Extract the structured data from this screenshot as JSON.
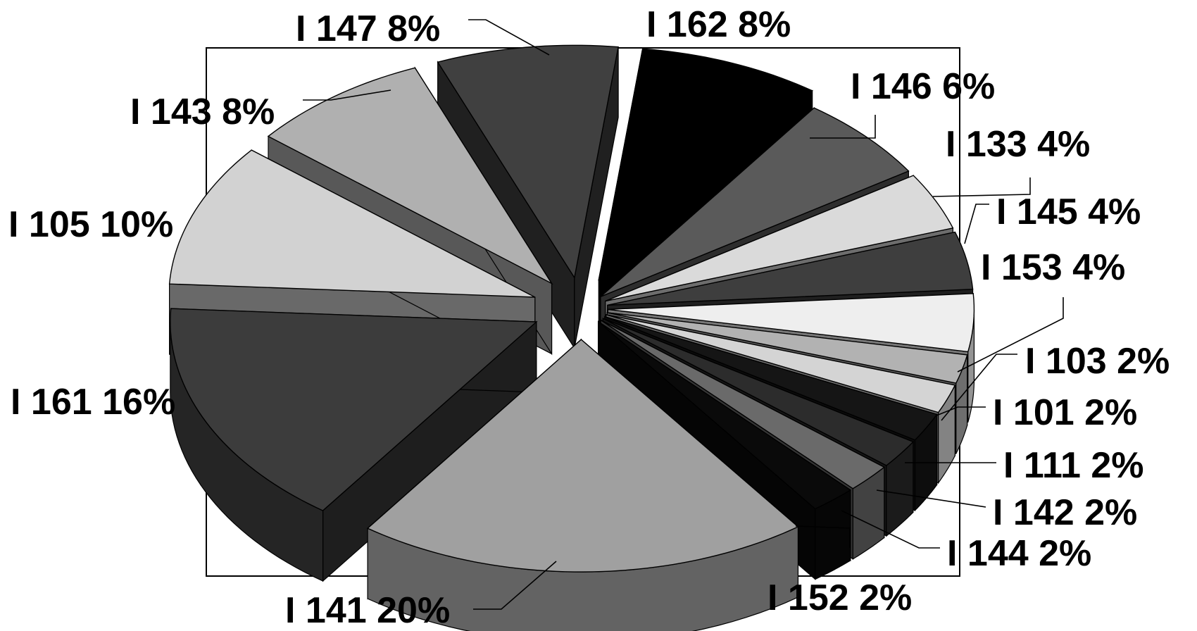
{
  "chart_data": {
    "type": "pie",
    "style": "3d-exploded",
    "slices": [
      {
        "name": "I 162",
        "percent": 8,
        "label": "I 162 8%",
        "color": "#000000"
      },
      {
        "name": "I 146",
        "percent": 6,
        "label": "I 146 6%",
        "color": "#5a5a5a"
      },
      {
        "name": "I 133",
        "percent": 4,
        "label": "I 133 4%",
        "color": "#dadada"
      },
      {
        "name": "I 145",
        "percent": 4,
        "label": "I 145 4%",
        "color": "#3e3e3e"
      },
      {
        "name": "I 153",
        "percent": 4,
        "label": "I 153 4%",
        "color": "#eeeeee"
      },
      {
        "name": "I 103",
        "percent": 2,
        "label": "I 103 2%",
        "color": "#b2b2b2"
      },
      {
        "name": "I 101",
        "percent": 2,
        "label": "I 101 2%",
        "color": "#d4d4d4"
      },
      {
        "name": "I 111",
        "percent": 2,
        "label": "I 111 2%",
        "color": "#151515"
      },
      {
        "name": "I 142",
        "percent": 2,
        "label": "I 142 2%",
        "color": "#2c2c2c"
      },
      {
        "name": "I 144",
        "percent": 2,
        "label": "I 144 2%",
        "color": "#6a6a6a"
      },
      {
        "name": "I 152",
        "percent": 2,
        "label": "I 152 2%",
        "color": "#0a0a0a"
      },
      {
        "name": "I 141",
        "percent": 20,
        "label": "I 141 20%",
        "color": "#a0a0a0"
      },
      {
        "name": "I 161",
        "percent": 16,
        "label": "I 161 16%",
        "color": "#3c3c3c"
      },
      {
        "name": "I 105",
        "percent": 10,
        "label": "I 105 10%",
        "color": "#d2d2d2"
      },
      {
        "name": "I 143",
        "percent": 8,
        "label": "I 143 8%",
        "color": "#b0b0b0"
      },
      {
        "name": "I 147",
        "percent": 8,
        "label": "I 147 8%",
        "color": "#404040"
      }
    ],
    "legend": "none",
    "data_labels": "outside with leader lines"
  }
}
